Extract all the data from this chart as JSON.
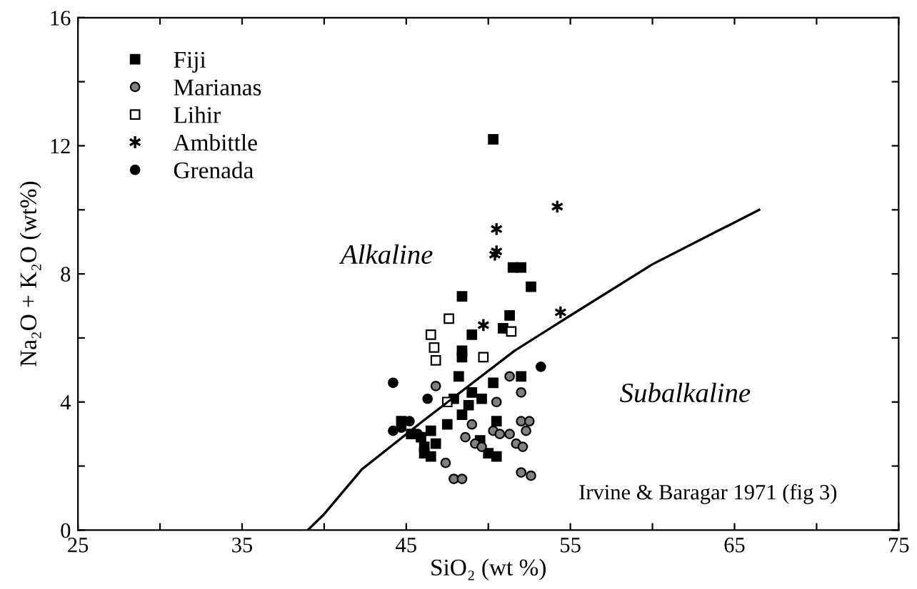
{
  "chart_data": {
    "type": "scatter",
    "xlabel": "SiO₂ (wt %)",
    "ylabel": "Na₂O + K₂O (wt%)",
    "xlim": [
      25,
      75
    ],
    "ylim": [
      0,
      16
    ],
    "xticks": [
      25,
      {
        "value": 30,
        "label": null
      },
      35,
      {
        "value": 40,
        "label": null
      },
      45,
      {
        "value": 50,
        "label": null
      },
      55,
      {
        "value": 60,
        "label": null
      },
      65,
      {
        "value": 70,
        "label": null
      },
      75
    ],
    "yticks": [
      0,
      {
        "value": 2,
        "label": null
      },
      4,
      {
        "value": 6,
        "label": null
      },
      8,
      {
        "value": 10,
        "label": null
      },
      12,
      {
        "value": 14,
        "label": null
      },
      16
    ],
    "grid": false,
    "legend": "top left",
    "annotations": [
      "Alkaline",
      "Subalkaline",
      "Irvine & Baragar 1971 (fig 3)"
    ],
    "series": [
      {
        "name": "Fiji",
        "color": "#000000",
        "marker": "square",
        "x": [
          50.3,
          51.5,
          52.0,
          52.6,
          48.4,
          50.9,
          51.3,
          49.0,
          48.4,
          48.4,
          48.2,
          49.0,
          47.9,
          48.8,
          50.3,
          52.0,
          49.6,
          48.4,
          50.5,
          44.7,
          46.5,
          45.9,
          46.8,
          45.3,
          47.5,
          49.5,
          50.0,
          46.1,
          46.1,
          50.5,
          46.5
        ],
        "values": [
          12.2,
          8.2,
          8.2,
          7.6,
          7.3,
          6.3,
          6.7,
          6.1,
          5.6,
          5.4,
          4.8,
          4.3,
          4.1,
          3.9,
          4.6,
          4.8,
          4.1,
          3.6,
          3.4,
          3.4,
          3.1,
          2.9,
          2.7,
          3.0,
          3.3,
          2.8,
          2.4,
          2.4,
          2.6,
          2.3,
          2.3
        ]
      },
      {
        "name": "Marianas",
        "color": "#808080",
        "marker": "circle",
        "x": [
          46.8,
          51.3,
          52.0,
          50.5,
          52.0,
          49.0,
          50.3,
          50.7,
          48.6,
          49.2,
          51.7,
          47.4,
          47.9,
          52.0,
          52.5,
          52.3,
          52.1,
          52.6,
          48.4,
          51.3,
          49.6
        ],
        "values": [
          4.5,
          4.8,
          4.3,
          4.0,
          3.4,
          3.3,
          3.1,
          3.0,
          2.9,
          2.7,
          2.7,
          2.1,
          1.6,
          1.8,
          3.4,
          3.1,
          2.6,
          1.7,
          1.6,
          3.0,
          2.6
        ]
      },
      {
        "name": "Lihir",
        "color": "#ffffff",
        "marker": "square",
        "x": [
          47.6,
          51.4,
          46.5,
          46.7,
          49.7,
          46.8,
          47.5
        ],
        "values": [
          6.6,
          6.2,
          6.1,
          5.7,
          5.4,
          5.3,
          4.0
        ]
      },
      {
        "name": "Ambittle",
        "color": "#000000",
        "marker": "cross",
        "x": [
          50.5,
          50.5,
          50.4,
          54.2,
          54.4,
          49.7
        ],
        "values": [
          9.4,
          8.7,
          8.6,
          10.1,
          6.8,
          6.4
        ]
      },
      {
        "name": "Grenada",
        "color": "#000000",
        "marker": "circle",
        "x": [
          53.2,
          44.2,
          46.3,
          44.2,
          44.7,
          45.2,
          45.7
        ],
        "values": [
          5.1,
          4.6,
          4.1,
          3.1,
          3.2,
          3.4,
          3.0
        ]
      },
      {
        "type": "line",
        "color": "#000000",
        "marker": "none",
        "x": [
          39.0,
          40.0,
          42.3,
          46.0,
          51.6,
          55.0,
          60.0,
          66.5
        ],
        "values": [
          0.0,
          0.5,
          1.9,
          3.4,
          5.6,
          6.7,
          8.3,
          10.0
        ]
      }
    ]
  }
}
